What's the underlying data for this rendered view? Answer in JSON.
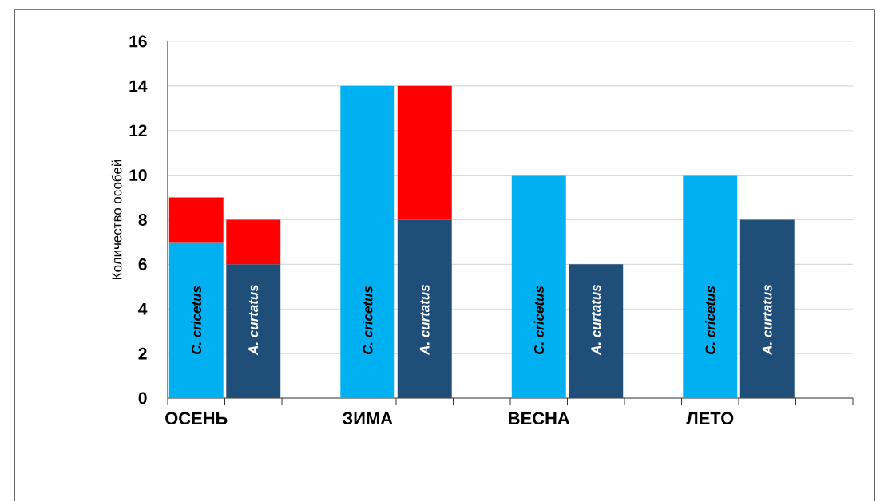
{
  "chart_data": {
    "type": "bar",
    "stacked": true,
    "categories": [
      "ОСЕНЬ",
      null,
      null,
      "ЗИМА",
      null,
      null,
      "ВЕСНА",
      null,
      null,
      "ЛЕТО",
      null,
      null
    ],
    "ylabel": "Количество особей",
    "ylim": [
      0,
      16
    ],
    "yticks": [
      0,
      2,
      4,
      6,
      8,
      10,
      12,
      14,
      16
    ],
    "grid": "y",
    "series": [
      {
        "colors": [
          "#00b0f0",
          "#1f4e79",
          null,
          "#00b0f0",
          "#1f4e79",
          null,
          "#00b0f0",
          "#1f4e79",
          null,
          "#00b0f0",
          "#1f4e79",
          null
        ],
        "values": [
          7,
          6,
          null,
          14,
          8,
          null,
          10,
          6,
          null,
          10,
          8,
          null
        ],
        "value_labels": [
          "C. cricetus",
          "A. curtatus",
          null,
          "C. cricetus",
          "A. curtatus",
          null,
          "C. cricetus",
          "A. curtatus",
          null,
          "C. cricetus",
          "A. curtatus",
          null
        ]
      },
      {
        "color": "#ff0000",
        "values": [
          2,
          2,
          null,
          null,
          6,
          null,
          null,
          null,
          null,
          null,
          null,
          null
        ]
      }
    ]
  }
}
